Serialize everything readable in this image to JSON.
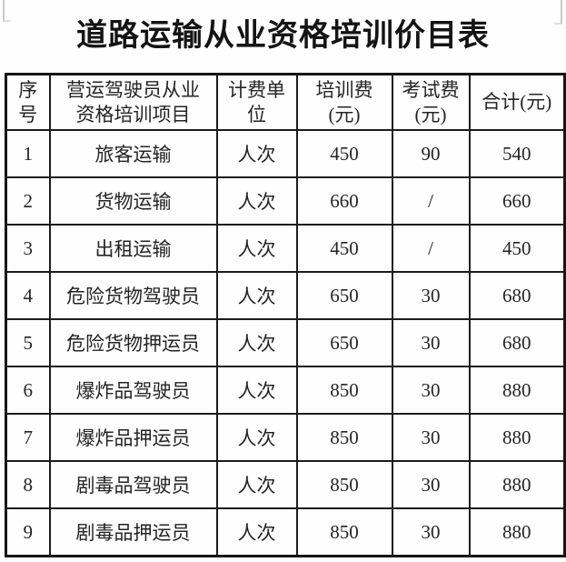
{
  "page": {
    "title": "道路运输从业资格培训价目表"
  },
  "table": {
    "headers": [
      "序\n号",
      "营运驾驶员从业\n资格培训项目",
      "计费单\n位",
      "培训费\n(元)",
      "考试费\n(元)",
      "合计(元)"
    ],
    "rows": [
      [
        "1",
        "旅客运输",
        "人次",
        "450",
        "90",
        "540"
      ],
      [
        "2",
        "货物运输",
        "人次",
        "660",
        "/",
        "660"
      ],
      [
        "3",
        "出租运输",
        "人次",
        "450",
        "/",
        "450"
      ],
      [
        "4",
        "危险货物驾驶员",
        "人次",
        "650",
        "30",
        "680"
      ],
      [
        "5",
        "危险货物押运员",
        "人次",
        "650",
        "30",
        "680"
      ],
      [
        "6",
        "爆炸品驾驶员",
        "人次",
        "850",
        "30",
        "880"
      ],
      [
        "7",
        "爆炸品押运员",
        "人次",
        "850",
        "30",
        "880"
      ],
      [
        "8",
        "剧毒品驾驶员",
        "人次",
        "850",
        "30",
        "880"
      ],
      [
        "9",
        "剧毒品押运员",
        "人次",
        "850",
        "30",
        "880"
      ]
    ]
  }
}
